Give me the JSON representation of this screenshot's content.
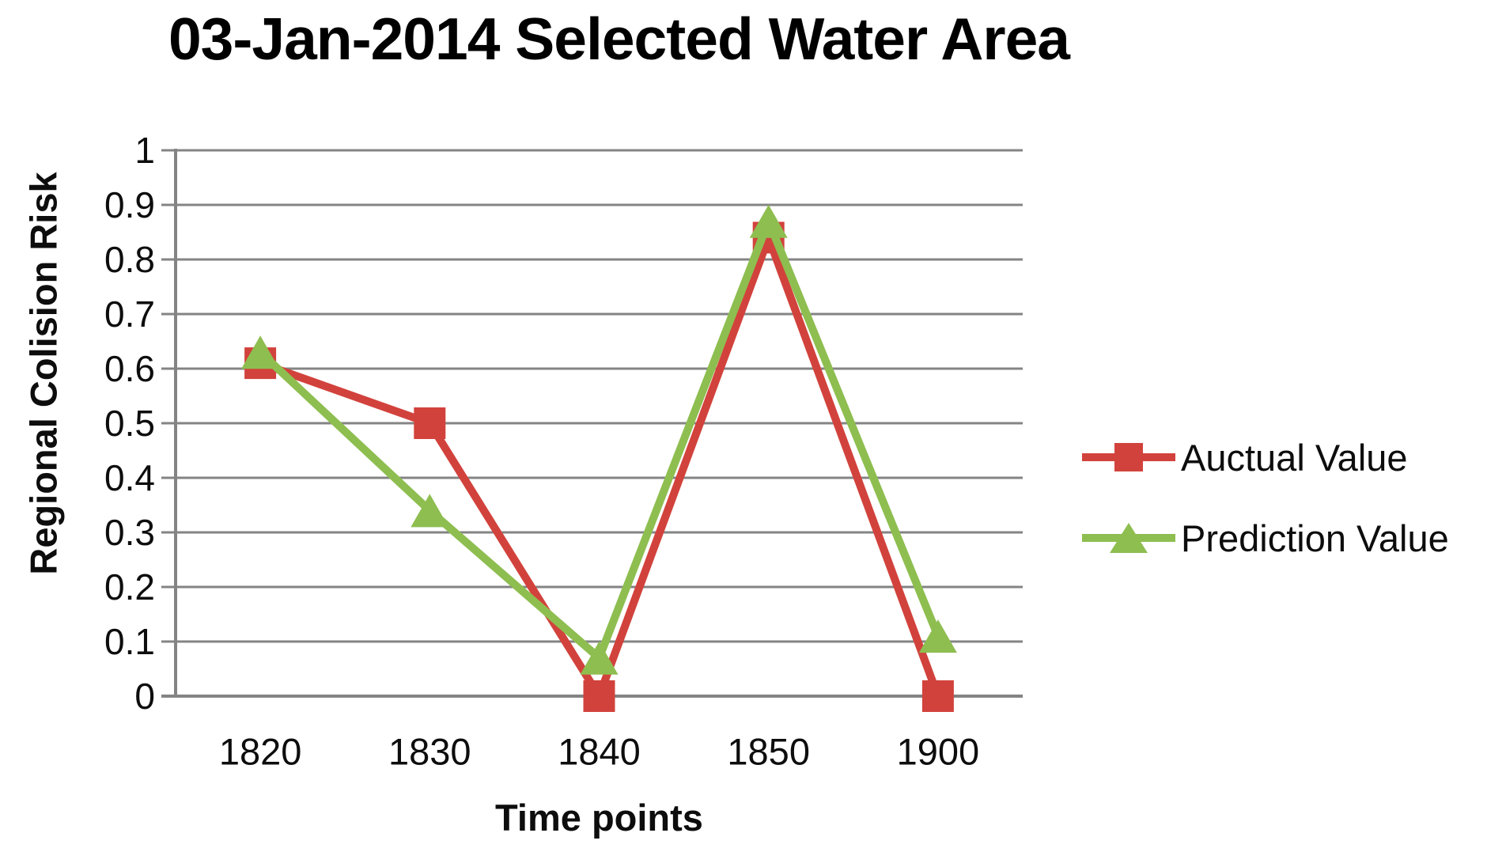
{
  "chart_data": {
    "type": "line",
    "title": "03-Jan-2014 Selected Water Area",
    "xlabel": "Time points",
    "ylabel": "Regional Colision Risk",
    "categories": [
      "1820",
      "1830",
      "1840",
      "1850",
      "1900"
    ],
    "series": [
      {
        "name": "Auctual Value",
        "marker": "square",
        "color": "#d2423c",
        "values": [
          0.61,
          0.5,
          0.0,
          0.84,
          0.0
        ]
      },
      {
        "name": "Prediction Value",
        "marker": "triangle",
        "color": "#8ebe50",
        "values": [
          0.63,
          0.34,
          0.07,
          0.87,
          0.11
        ]
      }
    ],
    "ylim": [
      0,
      1
    ],
    "ytick_labels": [
      "0",
      "0.1",
      "0.2",
      "0.3",
      "0.4",
      "0.5",
      "0.6",
      "0.7",
      "0.8",
      "0.9",
      "1"
    ],
    "grid": true,
    "legend_position": "right"
  },
  "colors": {
    "actual": "#d2423c",
    "prediction": "#8ebe50",
    "gridline": "#848484",
    "axis": "#848484",
    "text": "#0d0d0d",
    "background": "#ffffff"
  }
}
